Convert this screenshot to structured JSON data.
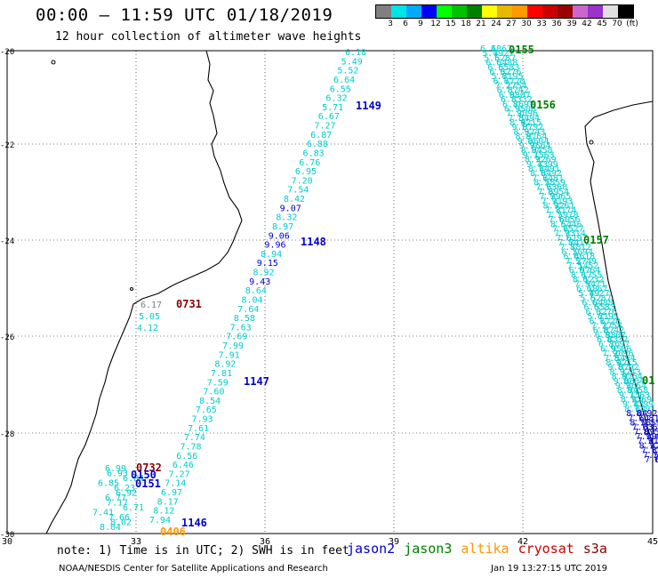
{
  "header": {
    "title": "00:00 – 11:59 UTC 01/18/2019",
    "subtitle": "12 hour collection of altimeter wave heights"
  },
  "scale": {
    "colors": [
      "#808080",
      "#00e5e5",
      "#00aaff",
      "#0000ff",
      "#00ff00",
      "#00c000",
      "#008000",
      "#ffff00",
      "#e6b800",
      "#ff9900",
      "#ff0000",
      "#cc0000",
      "#990000",
      "#cc66cc",
      "#9933cc",
      "#e0e0e0",
      "#000000"
    ],
    "labels": [
      "3",
      "6",
      "9",
      "12",
      "15",
      "18",
      "21",
      "24",
      "27",
      "30",
      "33",
      "36",
      "39",
      "42",
      "45",
      "70",
      "(ft)"
    ]
  },
  "axes": {
    "lon_labels": [
      "30",
      "33",
      "36",
      "39",
      "42",
      "45"
    ],
    "lat_labels": [
      "-20",
      "-22",
      "-24",
      "-26",
      "-28",
      "-30"
    ]
  },
  "passes": [
    {
      "label": "1149",
      "color": "#0000cc"
    },
    {
      "label": "1148",
      "color": "#0000cc"
    },
    {
      "label": "1147",
      "color": "#0000cc"
    },
    {
      "label": "1146",
      "color": "#0000cc"
    },
    {
      "label": "0731",
      "color": "#880000"
    },
    {
      "label": "0732",
      "color": "#880000"
    },
    {
      "label": "0150",
      "color": "#0000cc"
    },
    {
      "label": "0151",
      "color": "#0000cc"
    },
    {
      "label": "0406",
      "color": "#ff9900"
    },
    {
      "label": "0155",
      "color": "#008000"
    },
    {
      "label": "0156",
      "color": "#008000"
    },
    {
      "label": "0157",
      "color": "#008000"
    },
    {
      "label": "01",
      "color": "#008000"
    }
  ],
  "track_values": {
    "main": [
      "6.18",
      "5.49",
      "5.52",
      "6.64",
      "6.55",
      "6.32",
      "5.71",
      "6.67",
      "7.27",
      "6.87",
      "6.88",
      "6.83",
      "6.76",
      "6.95",
      "7.20",
      "7.54",
      "8.42",
      "9.07",
      "8.32",
      "8.97",
      "9.06",
      "9.96",
      "8.94",
      "9.15",
      "8.92",
      "9.43",
      "8.64",
      "8.04",
      "7.64",
      "8.58",
      "7.63",
      "7.69",
      "7.99",
      "7.91",
      "8.92",
      "7.81",
      "7.59",
      "7.60",
      "8.54",
      "7.65",
      "7.93",
      "7.61",
      "7.74",
      "7.78",
      "6.56",
      "6.46",
      "7.27",
      "7.14",
      "6.97",
      "8.17",
      "8.12",
      "7.94"
    ],
    "coastal": [
      "6.17",
      "5.05",
      "4.12"
    ],
    "south": [
      "6.99",
      "6.93",
      "6.84",
      "6.85",
      "6.23",
      "6.92",
      "6.77",
      "7.17",
      "6.71",
      "7.41",
      "7.66",
      "8.02",
      "8.04"
    ]
  },
  "footer": {
    "note": "note: 1) Time is in UTC; 2) SWH is in feet",
    "satellites": [
      {
        "name": "jason2",
        "color": "#0000cc"
      },
      {
        "name": "jason3",
        "color": "#008000"
      },
      {
        "name": "altika",
        "color": "#ff9900"
      },
      {
        "name": "cryosat",
        "color": "#cc0000"
      },
      {
        "name": "s3a",
        "color": "#880000"
      }
    ],
    "credit": "NOAA/NESDIS Center for Satellite Applications and Research",
    "timestamp": "Jan 19 13:27:15 UTC 2019"
  }
}
